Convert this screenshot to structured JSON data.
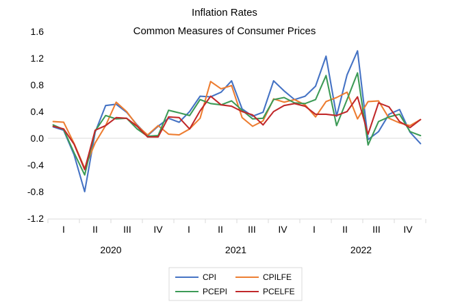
{
  "chart_data": {
    "type": "line",
    "title": "Inflation Rates",
    "subtitle": "Common Measures of Consumer Prices",
    "xlabel": "",
    "ylabel": "",
    "ylim": [
      -1.2,
      1.6
    ],
    "yticks": [
      "1.6",
      "1.2",
      "0.8",
      "0.4",
      "0.0",
      "-0.4",
      "-0.8",
      "-1.2"
    ],
    "ytick_values": [
      1.6,
      1.2,
      0.8,
      0.4,
      0.0,
      -0.4,
      -0.8,
      -1.2
    ],
    "grid": false,
    "legend_position": "bottom",
    "quarter_labels": [
      "I",
      "II",
      "III",
      "IV",
      "I",
      "II",
      "III",
      "IV",
      "I",
      "II",
      "III",
      "IV"
    ],
    "year_labels": [
      "2020",
      "2021",
      "2022"
    ],
    "x": [
      "2020-01",
      "2020-02",
      "2020-03",
      "2020-04",
      "2020-05",
      "2020-06",
      "2020-07",
      "2020-08",
      "2020-09",
      "2020-10",
      "2020-11",
      "2020-12",
      "2021-01",
      "2021-02",
      "2021-03",
      "2021-04",
      "2021-05",
      "2021-06",
      "2021-07",
      "2021-08",
      "2021-09",
      "2021-10",
      "2021-11",
      "2021-12",
      "2022-01",
      "2022-02",
      "2022-03",
      "2022-04",
      "2022-05",
      "2022-06",
      "2022-07",
      "2022-08",
      "2022-09",
      "2022-10",
      "2022-11",
      "2022-12"
    ],
    "series": [
      {
        "name": "CPI",
        "color": "#4472c4",
        "values": [
          0.17,
          0.12,
          -0.25,
          -0.8,
          0.09,
          0.49,
          0.51,
          0.39,
          0.2,
          0.04,
          0.18,
          0.3,
          0.24,
          0.4,
          0.63,
          0.62,
          0.69,
          0.86,
          0.44,
          0.33,
          0.39,
          0.86,
          0.71,
          0.58,
          0.63,
          0.78,
          1.23,
          0.33,
          0.95,
          1.31,
          -0.02,
          0.1,
          0.36,
          0.43,
          0.09,
          -0.08
        ]
      },
      {
        "name": "CPILFE",
        "color": "#ed7d31",
        "values": [
          0.25,
          0.24,
          -0.08,
          -0.45,
          -0.07,
          0.19,
          0.54,
          0.4,
          0.19,
          0.05,
          0.19,
          0.06,
          0.05,
          0.14,
          0.3,
          0.85,
          0.74,
          0.79,
          0.31,
          0.18,
          0.26,
          0.59,
          0.54,
          0.58,
          0.5,
          0.32,
          0.55,
          0.61,
          0.69,
          0.29,
          0.55,
          0.56,
          0.3,
          0.23,
          0.19,
          0.28
        ]
      },
      {
        "name": "PCEPI",
        "color": "#3c9a56",
        "values": [
          0.2,
          0.13,
          -0.22,
          -0.55,
          0.11,
          0.34,
          0.29,
          0.3,
          0.14,
          0.03,
          0.04,
          0.42,
          0.38,
          0.34,
          0.58,
          0.52,
          0.5,
          0.56,
          0.42,
          0.29,
          0.3,
          0.58,
          0.61,
          0.53,
          0.52,
          0.58,
          0.94,
          0.19,
          0.58,
          0.98,
          -0.1,
          0.25,
          0.32,
          0.36,
          0.1,
          0.04
        ]
      },
      {
        "name": "PCELFE",
        "color": "#c0282a",
        "values": [
          0.18,
          0.14,
          -0.09,
          -0.47,
          0.12,
          0.19,
          0.31,
          0.3,
          0.18,
          0.02,
          0.02,
          0.32,
          0.31,
          0.14,
          0.41,
          0.63,
          0.5,
          0.48,
          0.4,
          0.35,
          0.2,
          0.4,
          0.49,
          0.52,
          0.48,
          0.36,
          0.36,
          0.34,
          0.4,
          0.62,
          0.06,
          0.53,
          0.47,
          0.25,
          0.16,
          0.28
        ]
      }
    ]
  }
}
